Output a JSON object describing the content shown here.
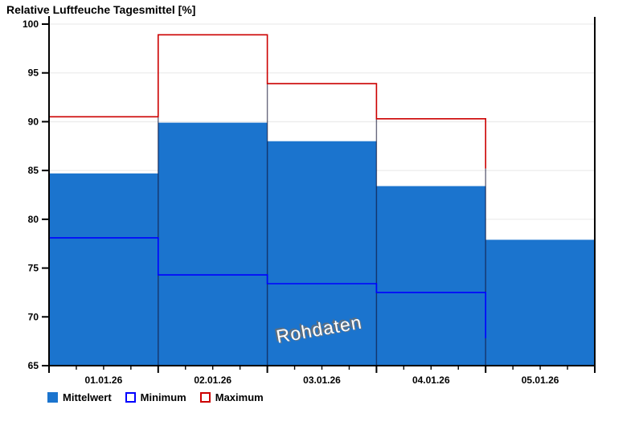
{
  "chart_data": {
    "type": "bar",
    "title": "Relative Luftfeuche Tagesmittel [%]",
    "categories": [
      "01.01.26",
      "02.01.26",
      "03.01.26",
      "04.01.26",
      "05.01.26"
    ],
    "series": [
      {
        "name": "Mittelwert",
        "style": "bar",
        "color": "#1B74CE",
        "values": [
          84.7,
          89.9,
          88.0,
          83.4,
          77.9
        ]
      },
      {
        "name": "Minimum",
        "style": "step",
        "color": "#0000FF",
        "values": [
          78.1,
          74.3,
          73.4,
          72.5,
          67.8
        ]
      },
      {
        "name": "Maximum",
        "style": "step",
        "color": "#CC0000",
        "values": [
          90.5,
          98.9,
          93.9,
          90.3,
          85.2
        ]
      }
    ],
    "ylim": [
      65,
      100
    ],
    "y_ticks": [
      65,
      70,
      75,
      80,
      85,
      90,
      95,
      100
    ],
    "grid": "horizontal-light",
    "legend_position": "bottom-left",
    "watermark": "Rohdaten",
    "render_hints": {
      "last_interval_minmax_horizontal_hidden": true,
      "dark_day_boundary_lines": true,
      "right_plot_border": true,
      "open_top_border": true
    }
  }
}
